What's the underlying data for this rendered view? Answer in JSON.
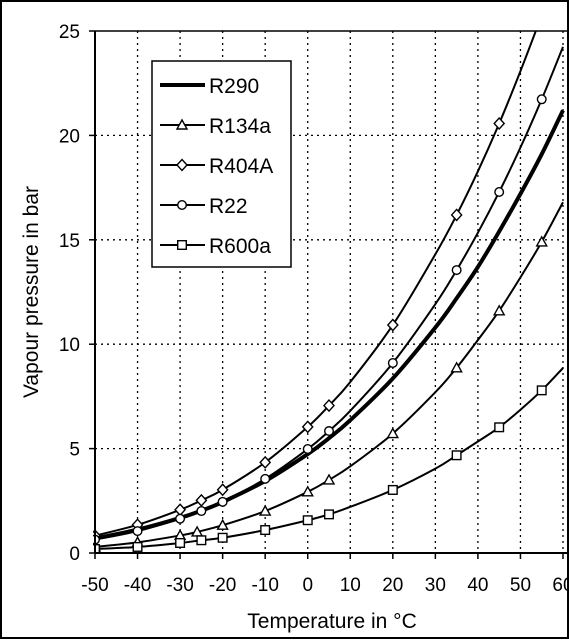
{
  "chart_data": {
    "type": "line",
    "title": "",
    "xlabel": "Temperature in °C",
    "ylabel": "Vapour pressure in bar",
    "xlim": [
      -50,
      60
    ],
    "ylim": [
      0,
      25
    ],
    "x_ticks": [
      -50,
      -40,
      -30,
      -20,
      -10,
      0,
      10,
      20,
      30,
      40,
      50,
      60
    ],
    "x_tick_labels": [
      "-50",
      "-40",
      "-30",
      "-20",
      "-10",
      "0",
      "10",
      "20",
      "30",
      "40",
      "50",
      "60"
    ],
    "y_ticks": [
      0,
      5,
      10,
      15,
      20,
      25
    ],
    "y_tick_labels": [
      "0",
      "5",
      "10",
      "15",
      "20",
      "25"
    ],
    "grid": true,
    "grid_style": "dotted",
    "legend_position": "top-left",
    "series": [
      {
        "name": "R290",
        "marker": "none",
        "line_weight": "bold",
        "x": [
          -50,
          -40,
          -30,
          -25,
          -20,
          -10,
          0,
          5,
          10,
          20,
          30,
          35,
          40,
          45,
          50,
          55,
          60
        ],
        "values": [
          0.7,
          1.12,
          1.68,
          2.03,
          2.44,
          3.45,
          4.74,
          5.5,
          6.36,
          8.36,
          10.8,
          12.2,
          13.7,
          15.4,
          17.2,
          19.1,
          21.2
        ],
        "marker_x": [],
        "marker_values": []
      },
      {
        "name": "R134a",
        "marker": "triangle",
        "line_weight": "normal",
        "x": [
          -50,
          -40,
          -30,
          -26,
          -20,
          -10,
          0,
          5,
          10,
          20,
          30,
          35,
          40,
          45,
          50,
          55,
          60
        ],
        "values": [
          0.29,
          0.51,
          0.84,
          1.01,
          1.33,
          2.01,
          2.93,
          3.5,
          4.15,
          5.72,
          7.7,
          8.87,
          10.2,
          11.6,
          13.2,
          14.9,
          16.8
        ],
        "marker_x": [
          -50,
          -40,
          -30,
          -26,
          -20,
          -10,
          0,
          5,
          20,
          35,
          45,
          55
        ],
        "marker_values": [
          0.29,
          0.51,
          0.84,
          1.01,
          1.33,
          2.01,
          2.93,
          3.5,
          5.72,
          8.87,
          11.6,
          14.9
        ]
      },
      {
        "name": "R404A",
        "marker": "diamond",
        "line_weight": "normal",
        "x": [
          -50,
          -40,
          -30,
          -25,
          -20,
          -10,
          0,
          5,
          10,
          20,
          30,
          35,
          40,
          45,
          50,
          55
        ],
        "values": [
          0.83,
          1.35,
          2.07,
          2.52,
          3.03,
          4.34,
          6.04,
          7.06,
          8.19,
          10.92,
          14.31,
          16.19,
          18.28,
          20.57,
          23.08,
          25.75
        ],
        "marker_x": [
          -50,
          -40,
          -30,
          -25,
          -20,
          -10,
          0,
          5,
          20,
          35,
          45
        ],
        "marker_values": [
          0.83,
          1.35,
          2.07,
          2.52,
          3.03,
          4.34,
          6.04,
          7.06,
          10.92,
          16.19,
          20.57
        ]
      },
      {
        "name": "R22",
        "marker": "circle",
        "line_weight": "normal",
        "x": [
          -50,
          -40,
          -30,
          -25,
          -20,
          -10,
          0,
          5,
          10,
          20,
          30,
          35,
          40,
          45,
          50,
          55,
          60
        ],
        "values": [
          0.64,
          1.05,
          1.64,
          2.01,
          2.45,
          3.55,
          4.98,
          5.84,
          6.81,
          9.1,
          11.92,
          13.55,
          15.34,
          17.29,
          19.42,
          21.73,
          24.24
        ],
        "marker_x": [
          -50,
          -40,
          -30,
          -25,
          -20,
          -10,
          0,
          5,
          20,
          35,
          45,
          55
        ],
        "marker_values": [
          0.64,
          1.05,
          1.64,
          2.01,
          2.45,
          3.55,
          4.98,
          5.84,
          9.1,
          13.55,
          17.29,
          21.73
        ]
      },
      {
        "name": "R600a",
        "marker": "square",
        "line_weight": "normal",
        "x": [
          -50,
          -40,
          -30,
          -25,
          -20,
          -10,
          0,
          5,
          10,
          20,
          30,
          35,
          40,
          45,
          50,
          55,
          60
        ],
        "values": [
          0.19,
          0.29,
          0.48,
          0.61,
          0.73,
          1.1,
          1.57,
          1.85,
          2.21,
          3.02,
          4.04,
          4.68,
          5.34,
          6.02,
          6.86,
          7.79,
          8.86
        ],
        "marker_x": [
          -50,
          -40,
          -30,
          -25,
          -20,
          -10,
          0,
          5,
          20,
          35,
          45,
          55
        ],
        "marker_values": [
          0.19,
          0.29,
          0.48,
          0.61,
          0.73,
          1.1,
          1.57,
          1.85,
          3.02,
          4.68,
          6.02,
          7.79
        ]
      }
    ]
  }
}
